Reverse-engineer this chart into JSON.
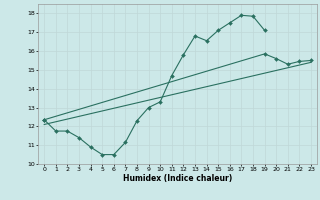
{
  "title": "",
  "xlabel": "Humidex (Indice chaleur)",
  "background_color": "#cce8e8",
  "grid_color": "#c0d8d8",
  "line_color": "#2a7060",
  "xlim": [
    -0.5,
    23.5
  ],
  "ylim": [
    10,
    18.5
  ],
  "yticks": [
    10,
    11,
    12,
    13,
    14,
    15,
    16,
    17,
    18
  ],
  "xticks": [
    0,
    1,
    2,
    3,
    4,
    5,
    6,
    7,
    8,
    9,
    10,
    11,
    12,
    13,
    14,
    15,
    16,
    17,
    18,
    19,
    20,
    21,
    22,
    23
  ],
  "line1_x": [
    0,
    1,
    2,
    3,
    4,
    5,
    6,
    7,
    8,
    9,
    10,
    11,
    12,
    13,
    14,
    15,
    16,
    17,
    18,
    19
  ],
  "line1_y": [
    12.35,
    11.75,
    11.75,
    11.4,
    10.9,
    10.5,
    10.5,
    11.15,
    12.3,
    13.0,
    13.3,
    14.7,
    15.8,
    16.8,
    16.55,
    17.1,
    17.5,
    17.9,
    17.85,
    17.1
  ],
  "line2_x": [
    0,
    19,
    20,
    21,
    22,
    23
  ],
  "line2_y": [
    12.35,
    15.85,
    15.6,
    15.3,
    15.45,
    15.5
  ],
  "line3_x": [
    0,
    23
  ],
  "line3_y": [
    12.1,
    15.4
  ]
}
